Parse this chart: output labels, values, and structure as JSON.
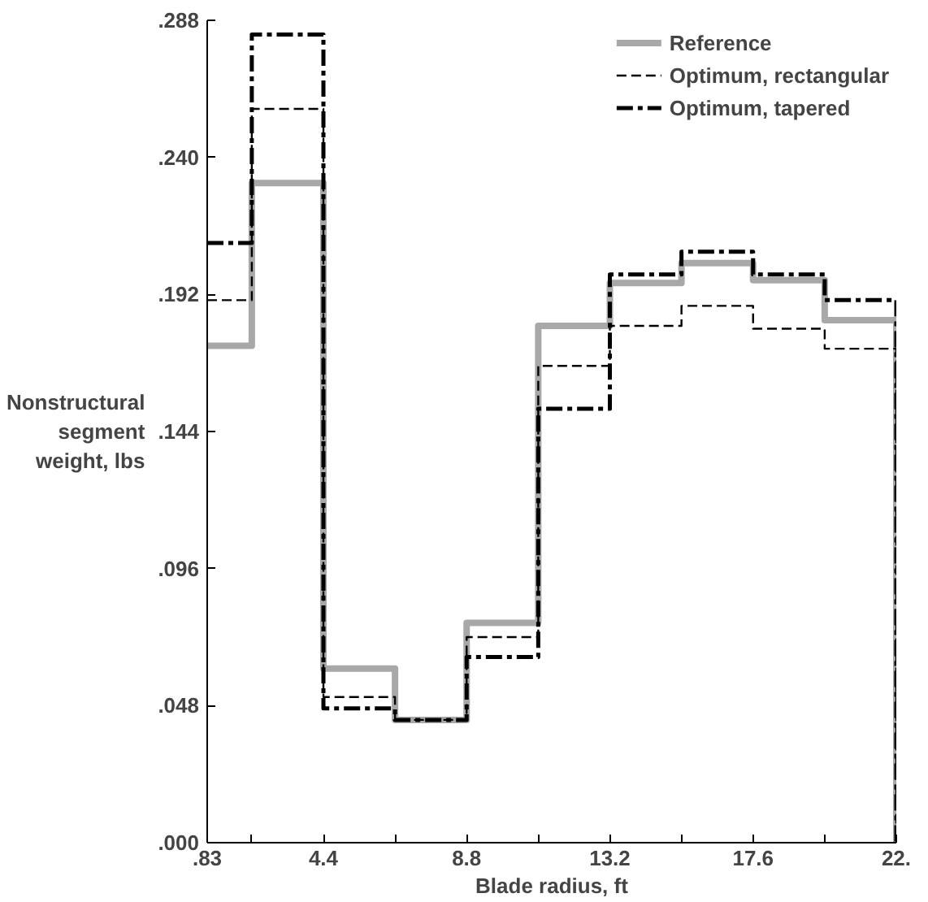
{
  "chart_data": {
    "type": "step",
    "xlabel": "Blade radius, ft",
    "ylabel": "Nonstructural\nsegment\nweight, lbs",
    "x": [
      0.83,
      2.2,
      4.4,
      6.6,
      8.8,
      11,
      13.2,
      15.4,
      17.6,
      19.8,
      22
    ],
    "series": [
      {
        "name": "Reference",
        "color": "#a8a8a8",
        "line_style": "solid",
        "values": [
          0.174,
          0.231,
          0.061,
          0.043,
          0.077,
          0.181,
          0.196,
          0.203,
          0.197,
          0.183,
          0
        ]
      },
      {
        "name": "Optimum, rectangular",
        "color": "#000000",
        "line_style": "dashed",
        "values": [
          0.19,
          0.257,
          0.051,
          0.043,
          0.072,
          0.167,
          0.181,
          0.188,
          0.18,
          0.173,
          0
        ]
      },
      {
        "name": "Optimum, tapered",
        "color": "#000000",
        "line_style": "dashdot",
        "values": [
          0.21,
          0.283,
          0.047,
          0.043,
          0.065,
          0.152,
          0.199,
          0.207,
          0.199,
          0.19,
          0
        ]
      }
    ],
    "xlim": [
      0.83,
      22
    ],
    "ylim": [
      0,
      0.288
    ],
    "xticks": [
      {
        "value": 0.83,
        "label": ".83"
      },
      {
        "value": 2.2,
        "label": null
      },
      {
        "value": 4.4,
        "label": "4.4"
      },
      {
        "value": 6.6,
        "label": null
      },
      {
        "value": 8.8,
        "label": "8.8"
      },
      {
        "value": 11,
        "label": null
      },
      {
        "value": 13.2,
        "label": "13.2"
      },
      {
        "value": 15.4,
        "label": null
      },
      {
        "value": 17.6,
        "label": "17.6"
      },
      {
        "value": 19.8,
        "label": null
      },
      {
        "value": 22,
        "label": "22."
      }
    ],
    "yticks": [
      {
        "value": 0,
        "label": ".000"
      },
      {
        "value": 0.048,
        "label": ".048"
      },
      {
        "value": 0.096,
        "label": ".096"
      },
      {
        "value": 0.144,
        "label": ".144"
      },
      {
        "value": 0.192,
        "label": ".192"
      },
      {
        "value": 0.24,
        "label": ".240"
      },
      {
        "value": 0.288,
        "label": ".288"
      }
    ],
    "grid": false,
    "legend": "top right"
  }
}
